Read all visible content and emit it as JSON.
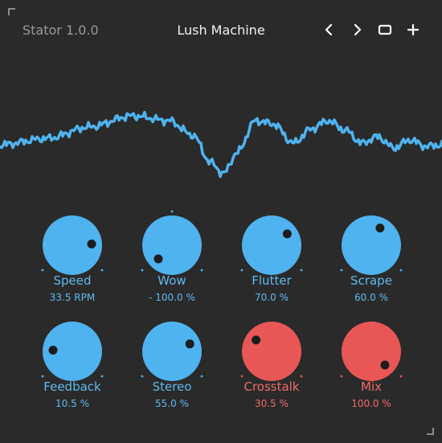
{
  "header": {
    "app_name": "Stator 1.0.0",
    "preset_name": "Lush Machine",
    "buttons": [
      {
        "id": "prev",
        "icon": "chevron-left-icon"
      },
      {
        "id": "next",
        "icon": "chevron-right-icon"
      },
      {
        "id": "window",
        "icon": "square-icon"
      },
      {
        "id": "add",
        "icon": "plus-icon"
      }
    ]
  },
  "colors": {
    "background": "#2a2a2a",
    "accent_blue": "#4fb3ef",
    "accent_red": "#e85756",
    "dot": "#1d1d1d",
    "label_blue": "#5fbaf0",
    "label_red": "#ee6b6a"
  },
  "knobs": [
    {
      "label": "Speed",
      "value": "33.5 RPM",
      "position": 0.82,
      "color": "blue"
    },
    {
      "label": "Wow",
      "value": "- 100.0 %",
      "position": 0.0,
      "color": "blue"
    },
    {
      "label": "Flutter",
      "value": "70.0 %",
      "position": 0.7,
      "color": "blue"
    },
    {
      "label": "Scrape",
      "value": "60.0 %",
      "position": 0.6,
      "color": "blue"
    },
    {
      "label": "Feedback",
      "value": "10.5 %",
      "position": 0.18,
      "color": "blue"
    },
    {
      "label": "Stereo",
      "value": "55.0 %",
      "position": 0.75,
      "color": "blue"
    },
    {
      "label": "Crosstalk",
      "value": "30.5 %",
      "position": 0.3,
      "color": "red"
    },
    {
      "label": "Mix",
      "value": "100.0 %",
      "position": 1.0,
      "color": "red"
    }
  ]
}
